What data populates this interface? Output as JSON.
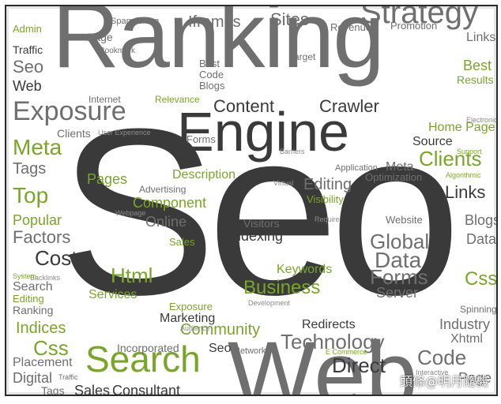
{
  "cloud": {
    "ranking": "Ranking",
    "seo": "Seo",
    "web": "Web",
    "engine": "Engine",
    "exposure": "Exposure",
    "content": "Content",
    "crawler": "Crawler",
    "search": "Search",
    "business": "Business",
    "technology": "Technology",
    "global": "Global",
    "data": "Data",
    "forms": "Forms",
    "server": "Server",
    "website": "Website",
    "links": "Links",
    "clients": "Clients",
    "blogs": "Blogs",
    "meta": "Meta",
    "tags": "Tags",
    "top": "Top",
    "popular": "Popular",
    "factors": "Factors",
    "cost": "Cost",
    "html": "Html",
    "services": "Services",
    "pages": "Pages",
    "component": "Component",
    "online": "Online",
    "description": "Description",
    "editing": "Editing",
    "visibility": "Visibility",
    "keywords": "Keywords",
    "visitors": "Visitors",
    "indexing": "Indexing",
    "css": "Css",
    "indices": "Indices",
    "placement": "Placement",
    "digital": "Digital",
    "sales": "Sales",
    "consultant": "Consultant",
    "community": "Community",
    "marketing": "Marketing",
    "redirects": "Redirects",
    "direct": "Direct",
    "code": "Code",
    "industry": "Industry",
    "xhtml": "Xhtml",
    "network": "Network",
    "incorporated": "Incorporated",
    "iframes": "Iframes",
    "sites": "Sites",
    "strategy": "Strategy",
    "revenue": "Revenue",
    "promotion": "Promotion",
    "page": "Page",
    "traffic": "Traffic",
    "admin": "Admin",
    "barriers": "Barriers",
    "spamdexing": "Spamdexing",
    "bookmark": "Bookmark",
    "target": "Target",
    "best": "Best",
    "results": "Results",
    "home_page": "Home Page",
    "source": "Source",
    "optimization": "Optimization",
    "application": "Application",
    "virtual": "Virtual",
    "relevance": "Relevance",
    "advertising": "Advertising",
    "webpage": "Webpage",
    "spinning": "Spinning",
    "internet": "Internet",
    "user_experience": "User Experience",
    "backlinks": "Backlinks",
    "audience": "Audience",
    "electronic": "Electronic",
    "algorithmic": "Algorithmic",
    "system": "System",
    "support": "Support",
    "require": "Require",
    "development": "Development",
    "e_commerce": "E Commerce",
    "interactive": "Interactive"
  },
  "watermark": "頭條@明月隨機"
}
